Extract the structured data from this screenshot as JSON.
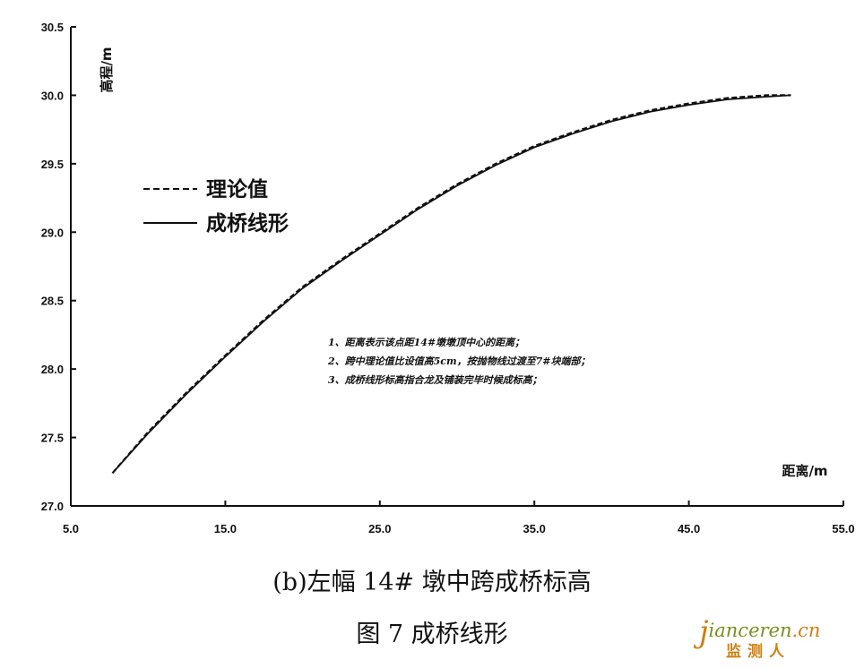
{
  "chart_data": {
    "type": "line",
    "xlabel": "距离/m",
    "ylabel": "高程/m",
    "xlim": [
      5.0,
      55.0
    ],
    "ylim": [
      27.0,
      30.5
    ],
    "x_ticks": [
      "5.0",
      "15.0",
      "25.0",
      "35.0",
      "45.0",
      "55.0"
    ],
    "y_ticks": [
      "27.0",
      "27.5",
      "28.0",
      "28.5",
      "29.0",
      "29.5",
      "30.0",
      "30.5"
    ],
    "legend_position": "upper-left",
    "grid": false,
    "series": [
      {
        "name": "理论值",
        "style": "dashed",
        "x": [
          7.7,
          10,
          12.5,
          15,
          17.5,
          20,
          22.5,
          25,
          27.5,
          30,
          32.5,
          35,
          37.5,
          40,
          42.5,
          45,
          47.5,
          50,
          51.6
        ],
        "y": [
          27.24,
          27.54,
          27.83,
          28.1,
          28.36,
          28.6,
          28.8,
          28.99,
          29.18,
          29.35,
          29.5,
          29.63,
          29.73,
          29.82,
          29.89,
          29.94,
          29.98,
          30.0,
          30.0
        ]
      },
      {
        "name": "成桥线形",
        "style": "solid",
        "x": [
          7.7,
          10,
          12.5,
          15,
          17.5,
          20,
          22.5,
          25,
          27.5,
          30,
          32.5,
          35,
          37.5,
          40,
          42.5,
          45,
          47.5,
          50,
          51.6
        ],
        "y": [
          27.24,
          27.53,
          27.82,
          28.09,
          28.35,
          28.59,
          28.79,
          28.98,
          29.17,
          29.34,
          29.49,
          29.62,
          29.72,
          29.81,
          29.88,
          29.93,
          29.97,
          29.99,
          30.0
        ]
      }
    ],
    "annotations": [
      "1、距离表示该点距14#墩墩顶中心的距离；",
      "2、跨中理论值比设值高5cm，按抛物线过渡至7#块端部；",
      "3、成桥线形标高指合龙及铺装完毕时候成标高；"
    ]
  },
  "caption": {
    "subtitle": "(b)左幅 14# 墩中跨成桥标高",
    "figure": "图 7  成桥线形"
  },
  "watermark": {
    "latin_first": "j",
    "latin_rest": "ianceren",
    "latin_suffix": ".cn",
    "cjk": "监测人"
  },
  "colors": {
    "line": "#111111",
    "watermark_orange": "#d07f12",
    "watermark_green": "#7a8f1d"
  }
}
